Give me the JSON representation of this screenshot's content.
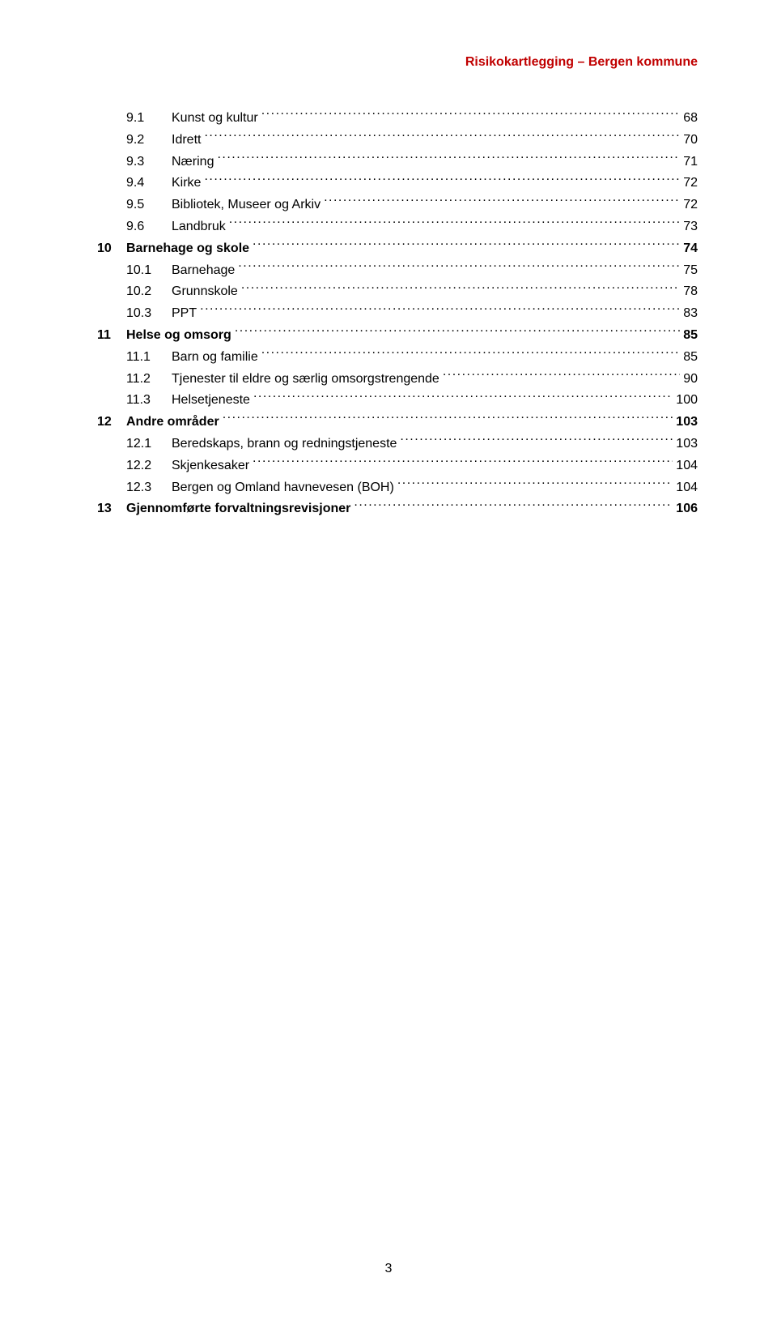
{
  "header_text": "Risikokartlegging – Bergen kommune",
  "page_number": "3",
  "rows": [
    {
      "level": 2,
      "num": "",
      "sub": "9.1",
      "title": "Kunst og kultur",
      "page": "68",
      "bold": false
    },
    {
      "level": 2,
      "num": "",
      "sub": "9.2",
      "title": "Idrett",
      "page": "70",
      "bold": false
    },
    {
      "level": 2,
      "num": "",
      "sub": "9.3",
      "title": "Næring",
      "page": "71",
      "bold": false
    },
    {
      "level": 2,
      "num": "",
      "sub": "9.4",
      "title": "Kirke",
      "page": "72",
      "bold": false
    },
    {
      "level": 2,
      "num": "",
      "sub": "9.5",
      "title": "Bibliotek, Museer og Arkiv",
      "page": "72",
      "bold": false
    },
    {
      "level": 2,
      "num": "",
      "sub": "9.6",
      "title": "Landbruk",
      "page": "73",
      "bold": false
    },
    {
      "level": 1,
      "num": "10",
      "sub": "",
      "title": "Barnehage og skole",
      "page": "74",
      "bold": true
    },
    {
      "level": 2,
      "num": "",
      "sub": "10.1",
      "title": "Barnehage",
      "page": "75",
      "bold": false
    },
    {
      "level": 2,
      "num": "",
      "sub": "10.2",
      "title": "Grunnskole",
      "page": "78",
      "bold": false
    },
    {
      "level": 2,
      "num": "",
      "sub": "10.3",
      "title": "PPT",
      "page": "83",
      "bold": false
    },
    {
      "level": 1,
      "num": "11",
      "sub": "",
      "title": "Helse og omsorg",
      "page": "85",
      "bold": true
    },
    {
      "level": 2,
      "num": "",
      "sub": "11.1",
      "title": "Barn og familie",
      "page": "85",
      "bold": false
    },
    {
      "level": 2,
      "num": "",
      "sub": "11.2",
      "title": "Tjenester til eldre og særlig omsorgstrengende",
      "page": "90",
      "bold": false
    },
    {
      "level": 2,
      "num": "",
      "sub": "11.3",
      "title": "Helsetjeneste",
      "page": "100",
      "bold": false
    },
    {
      "level": 1,
      "num": "12",
      "sub": "",
      "title": "Andre områder",
      "page": "103",
      "bold": true
    },
    {
      "level": 2,
      "num": "",
      "sub": "12.1",
      "title": "Beredskaps, brann og redningstjeneste",
      "page": "103",
      "bold": false
    },
    {
      "level": 2,
      "num": "",
      "sub": "12.2",
      "title": "Skjenkesaker",
      "page": "104",
      "bold": false
    },
    {
      "level": 2,
      "num": "",
      "sub": "12.3",
      "title": "Bergen og Omland havnevesen (BOH)",
      "page": "104",
      "bold": false
    },
    {
      "level": 1,
      "num": "13",
      "sub": "",
      "title": "Gjennomførte forvaltningsrevisjoner",
      "page": "106",
      "bold": true
    }
  ]
}
